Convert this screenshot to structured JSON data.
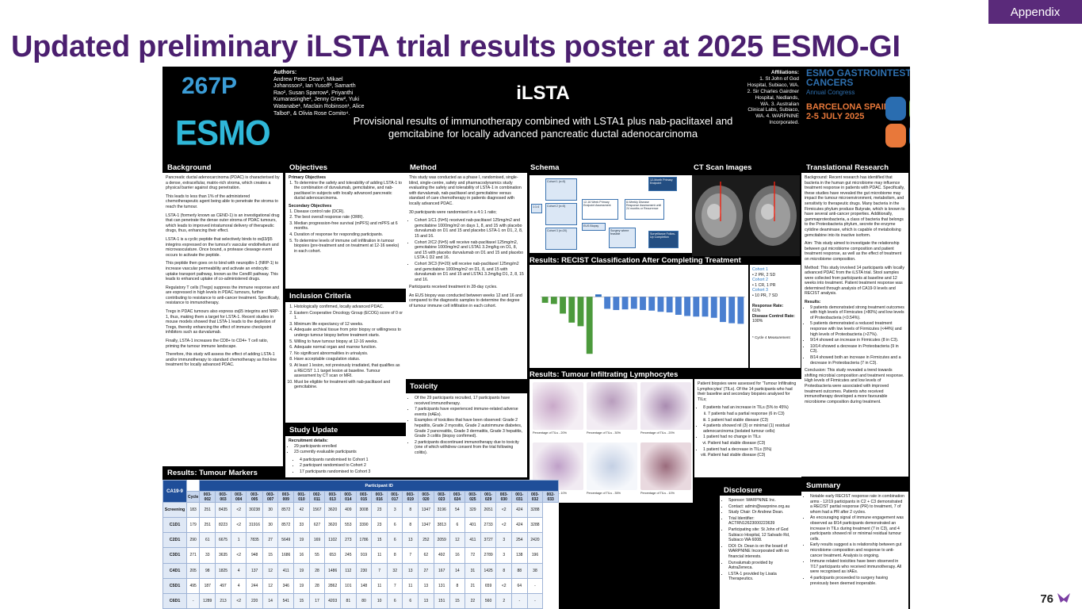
{
  "slide": {
    "tag": "Appendix",
    "title": "Updated preliminary iLSTA trial results poster at 2025 ESMO-GI",
    "page_number": "76",
    "logo_icon": "brand-arrow-icon"
  },
  "poster": {
    "code": "267P",
    "esmo_logo": "ESMO",
    "authors_heading": "Authors:",
    "authors": "Andrew Peter Dean¹, Mikael Johansson², Ian Yusoff³, Samarth Rao², Susan Sparrow², Priyanthi Kumarasinghe³, Jenny Grew², Yuki Watanabe¹, Maclain Robinson¹, Alice Talbot¹, & Olivia Rose Comito⁴.",
    "name": "iLSTA",
    "subtitle": "Provisional results of immunotherapy combined with LSTA1 plus nab-paclitaxel and gemcitabine for locally advanced pancreatic ductal adenocarcinoma",
    "affiliations_heading": "Affiliations:",
    "affiliations": "1. St John of God Hospital, Subiaco, WA. 2. Sir Charles Gairdner Hospital, Nedlands, WA. 3. Australian Clinical Labs, Subiaco, WA. 4. WARPNINE Incorporated.",
    "congress": {
      "line1": "ESMO GASTROINTESTINAL CANCERS",
      "line2": "Annual Congress",
      "line3": "BARCELONA SPAIN",
      "line4": "2-5 JULY 2025"
    },
    "sections": {
      "background": "Background",
      "objectives": "Objectives",
      "method": "Method",
      "schema": "Schema",
      "ct": "CT Scan Images",
      "translational": "Translational Research",
      "inclusion": "Inclusion Criteria",
      "recist": "Results: RECIST Classification After Completing Treatment",
      "til": "Results: Tumour Infiltrating Lymphocytes",
      "toxicity": "Toxicity",
      "study_update": "Study Update",
      "markers": "Results: Tumour Markers",
      "disclosure": "Disclosure",
      "summary": "Summary"
    },
    "background_text": [
      "Pancreatic ductal adenocarcinoma (PDAC) is characterised by a dense, extracellular, matrix-rich stroma, which creates a physical barrier against drug penetration.",
      "This leads to less than 1% of the administered chemotherapeutic agent being able to penetrate the stroma to reach the tumour.",
      "LSTA-1 (formerly known as CEND-1) is an investigational drug that can penetrate the dense outer stroma of PDAC tumours, which leads to improved intratumoral delivery of therapeutic drugs, thus, enhancing their effect.",
      "LSTA-1 is a cyclic peptide that selectively binds to αvβ3/β5 integrins expressed on the tumour's vascular endothelium and microvasculature. Once bound, a protease cleavage event occurs to activate the peptide.",
      "This peptide then goes on to bind with neuropilin-1 (NRP-1) to increase vascular permeability and activate an endocytic uptake transport pathway, known as the CendR pathway. This leads to enhanced uptake of co-administered drugs.",
      "Regulatory T cells (Tregs) suppress the immune response and are expressed in high levels in PDAC tumours, further contributing to resistance to anti-cancer treatment. Specifically, resistance to immunotherapy.",
      "Tregs in PDAC tumours also express αvβ5 integrins and NRP-1, thus, making them a target for LSTA-1. Recent studies in mouse models showed that LSTA-1 leads to the depletion of Tregs, thereby enhancing the effect of immune checkpoint inhibitors such as durvalumab.",
      "Finally, LSTA-1 increases the CD8+ to CD4+ T cell ratio, priming the tumour immune landscape.",
      "Therefore, this study will assess the effect of adding LSTA-1 and/or immunotherapy to standard chemotherapy as first-line treatment for locally advanced PDAC."
    ],
    "objectives": {
      "primary_heading": "Primary Objectives",
      "primary": [
        "To determine the safety and tolerability of adding LSTA-1 to the combination of durvalumab, gemcitabine, and nab-paclitaxel in subjects with locally advanced pancreatic ductal adenocarcinoma."
      ],
      "secondary_heading": "Secondary Objectives",
      "secondary": [
        "Disease control rate (DCR).",
        "The best overall response rate (ORR).",
        "Median progression-free survival (mPFS) and mPFS at 6 months.",
        "Duration of response for responding participants.",
        "To determine levels of immune cell infiltration in tumour biopsies (pre-treatment and on treatment at 12-16 weeks) in each cohort."
      ]
    },
    "inclusion": [
      "Histologically confirmed, locally advanced PDAC.",
      "Eastern Cooperative Oncology Group (ECOG) score of 0 or 1.",
      "Minimum life expectancy of 12 weeks.",
      "Adequate archival tissue from prior biopsy or willingness to undergo tumour biopsy before treatment starts.",
      "Willing to have tumour biopsy at 12-16 weeks.",
      "Adequate normal organ and marrow function.",
      "No significant abnormalities in urinalysis.",
      "Have acceptable coagulation status.",
      "At least 1 lesion, not previously irradiated, that qualifies as a RECIST 1.1 target lesion at baseline. Tumour assessment by CT scan or MRI.",
      "Must be eligible for treatment with nab-paclitaxel and gemcitabine."
    ],
    "study_update": {
      "heading": "Recruitment details:",
      "items": [
        "29 participants enrolled",
        "23 currently evaluable participants"
      ],
      "sub": [
        "4 participants randomised to Cohort 1",
        "2 participant randomised to Cohort 2",
        "17 participants randomised to Cohort 3"
      ]
    },
    "method": {
      "intro": "This study was conducted as a phase I, randomised, single-blind, single-centre, safety and pharmacodynamics study evaluating the safety and tolerability of LSTA-1 in combination with durvalumab, nab-paclitaxel and gemcitabine versus standard of care chemotherapy in patients diagnosed with locally advanced PDAC.",
      "rand": "30 participants were randomised in a 4:1:1 ratio;",
      "cohorts": [
        "Cohort 1/C1 (N=5) received nab-paclitaxel 125mg/m2 and gemcitabine 1000mg/m2 on days 1, 8, and 15 with placebo durvalumab on D1 and 15 and placebo LSTA-1 on D1, 2, 8, 15 and 16.",
        "Cohort 2/C2 (N=5) will receive nab-paclitaxel 125mg/m2, gemcitabine 1000mg/m2 and LSTA1 3.2mg/kg on D1, 8, and 15 with placebo durvalumab on D1 and 15 and placebo LSTA-1 D2 and 16.",
        "Cohort 3/C3 (N=20) will receive nab-paclitaxel 125mg/m2 and gemcitabine 1000mg/m2 on D1, 8, and 15 with durvalumab on D1 and 15 and LSTA1 3.2mg/kg D1, 2, 8, 15 and 16."
      ],
      "cycles": "Participants received treatment in 28-day cycles.",
      "eus": "An EUS biopsy was conducted between weeks 12 and 16 and compared to the diagnostic samples to determine the degree of tumour immune cell infiltration in each cohort."
    },
    "toxicity": [
      "Of the 29 participants recruited, 17 participants have received immunotherapy.",
      "7 participants have experienced immune-related adverse events (irAEs).",
      "Examples of toxicities that have been observed: Grade 2 hepatitis, Grade 2 myositis, Grade 2 autoimmune diabetes, Grade 2 pancreatitis, Grade 3 dermatitis, Grade 3 hepatitis, Grade 3 colitis (biopsy confirmed).",
      "2 participants discontinued immunotherapy due to toxicity (one of which withdrew consent from the trial following colitis)."
    ],
    "schema_text": {
      "c1": "Cohort 1 (n=5)",
      "c2": "Cohort 2 (n=5)",
      "c3": "Cohort 3 (n=20)",
      "r": "1:1:4",
      "a": "12-16 Week Primary Endpoint Assessment",
      "b": "EUS Biopsy",
      "c": "8-Weekly Disease Response Assessment until 24 months or Recurrence",
      "d": "12-Month Primary Endpoint",
      "e": "Surgery where feasible",
      "f": "Surveillance Follow-Up Completion"
    },
    "recist_side": {
      "c1": "Cohort 1",
      "c1v": "2 PR, 2 SD",
      "c2": "Cohort 2",
      "c2v": "1 CR, 1 PR",
      "c3": "Cohort 3",
      "c3v": "10 PR, 7 SD",
      "rr_label": "Response Rate:",
      "rr": "61%",
      "dcr_label": "Disease Control Rate:",
      "dcr": "100%",
      "note": "* Cycle 4 Measurement"
    },
    "til_text": {
      "intro": "Patient biopsies were assessed for 'Tumour Infiltrating Lymphocytes' (TILs). Of the 14 participants who had their baseline and secondary biopsies analysed for TILs;",
      "items": [
        "8 patients had an increase in TILs (5% to 45%)",
        "7 patients had a partial response (6 in C3)",
        "1 patient had stable disease (C3)",
        "4 patients showed nil (3) or minimal (1) residual adenocarcinoma (isolated tumour cells)",
        "1 patient had no change in TILs",
        "Patient had stable disease (C3)",
        "1 patient had a decrease in TILs (5%)",
        "Patient had stable disease (C3)"
      ],
      "caps": [
        "Percentage of TILs - 20%",
        "Percentage of TILs - 30%",
        "Percentage of TILs - 20%",
        "Percentage of TILs - 10%",
        "Percentage of TILs - 35%",
        "Percentage of TILs - 10%"
      ]
    },
    "translational": {
      "bg": "Background: Recent research has identified that bacteria in the human gut microbiome may influence treatment response in patients with PDAC. Specifically, these studies have revealed the gut microbiome may impact the tumour microenvironment, metabolism, and sensitivity to therapeutic drugs. Many bacteria in the Firmicutes phylum produce Butyrate, which is known to have several anti-cancer properties. Additionally, gammaproteobacteria, a class of bacteria that belongs to the Proteobacteria phylum, secrete the enzyme cytidine deaminase, which is capable of metabolising gemcitabine into its inactive isoform.",
      "aim": "Aim: This study aimed to investigate the relationship between gut microbiome composition and patient treatment response, as well as the effect of treatment on microbiome composition.",
      "method": "Method: This study involved 14 participants with locally advanced PDAC from the iLSTA trial. Stool samples were collected from participants at baseline and 12 weeks into treatment. Patient treatment response was determined through analysis of CA19-9 levels and RECIST analysis.",
      "results_heading": "Results:",
      "results": [
        "9 patients demonstrated strong treatment outcomes with high levels of Firmicutes (>80%) and low levels of Proteobacteria (<0.54%).",
        "5 patients demonstrated a reduced treatment response with low levels of Firmicutes (<44%) and high levels of Proteobacteria (>27%).",
        "9/14 showed an increase in Firmicutes (8 in C3).",
        "10/14 showed a decrease in Proteobacteria (9 in C3).",
        "8/14 showed both an increase in Firmicutes and a decrease in Proteobacteria (7 in C3)."
      ],
      "conclusion": "Conclusion: This study revealed a trend towards shifting microbial composition and treatment response. High levels of Firmicutes and low levels of Proteobacteria were associated with improved treatment outcomes. Patients who received immunotherapy developed a more favourable microbiome composition during treatment."
    },
    "disclosure": [
      "Sponsor: WARPNINE Inc.",
      "Contact: admin@warpnine.org.au",
      "Study Chair: Dr Andrew Dean.",
      "Trial Identifier: ACTRN12623000223639",
      "Participating site: St John of God Subiaco Hospital, 12 Salvado Rd, Subiaco WA 6008.",
      "DOI: Dr. Dean is on the board of WARPNINE Incorporated with no financial interests.",
      "Durvalumab provided by AstraZeneca.",
      "LSTA-1 provided by Lisata Therapeutics."
    ],
    "summary": [
      "Notable early RECIST response rate in combination arms - 12/19 participants in C2 + C3 demonstrated a RECIST partial response (PR) to treatment, 7 of whom had a PR after 2 cycles.",
      "An encouraging signal of immune engagement was observed as 8/14 participants demonstrated an increase in TILs during treatment (7 in C3), and 4 participants showed nil or minimal residual tumour cells.",
      "Early results suggest a is relationship between gut microbiome composition and response to anti-cancer treatment. Analysis is ongoing.",
      "Immune related toxicities have been observed in 7/17 participants who received immunotherapy. All were recognised as irAEs.",
      "4 participants proceeded to surgery having previously been deemed inoperable."
    ]
  },
  "markers_table": {
    "group": "CA19-9",
    "header": "Participant ID",
    "cycle_label": "Cycle",
    "ids": [
      "003-002",
      "003-003",
      "003-004",
      "003-005",
      "003-007",
      "003-009",
      "001-010",
      "002-011",
      "003-013",
      "003-014",
      "003-015",
      "003-016",
      "001-017",
      "003-019",
      "003-020",
      "003-023",
      "003-024",
      "003-025",
      "001-029",
      "003-030",
      "001-031",
      "003-032",
      "002-033"
    ],
    "rows": [
      {
        "label": "Screening",
        "values": [
          "183",
          "251",
          "8435",
          "<2",
          "30238",
          "30",
          "8572",
          "42",
          "1567",
          "3620",
          "409",
          "3008",
          "23",
          "3",
          "8",
          "1347",
          "3196",
          "54",
          "329",
          "2651",
          "<2",
          "424",
          "3288"
        ]
      },
      {
        "label": "C1D1",
        "values": [
          "179",
          "251",
          "8223",
          "<2",
          "31916",
          "30",
          "8572",
          "33",
          "627",
          "3620",
          "553",
          "3390",
          "23",
          "6",
          "8",
          "1347",
          "3813",
          "6",
          "401",
          "2733",
          "<2",
          "424",
          "3288"
        ]
      },
      {
        "label": "C2D1",
        "values": [
          "290",
          "61",
          "6675",
          "1",
          "7835",
          "27",
          "5649",
          "19",
          "169",
          "1102",
          "273",
          "1786",
          "15",
          "6",
          "13",
          "252",
          "2059",
          "12",
          "411",
          "3727",
          "3",
          "254",
          "2420"
        ]
      },
      {
        "label": "C3D1",
        "values": [
          "271",
          "33",
          "3635",
          "<2",
          "948",
          "15",
          "1686",
          "16",
          "55",
          "653",
          "245",
          "919",
          "11",
          "8",
          "7",
          "62",
          "492",
          "16",
          "72",
          "2789",
          "3",
          "138",
          "196"
        ]
      },
      {
        "label": "C4D1",
        "values": [
          "205",
          "98",
          "1825",
          "4",
          "137",
          "12",
          "411",
          "19",
          "28",
          "1486",
          "112",
          "230",
          "7",
          "32",
          "13",
          "27",
          "167",
          "14",
          "31",
          "1425",
          "8",
          "88",
          "38"
        ]
      },
      {
        "label": "C5D1",
        "values": [
          "495",
          "187",
          "497",
          "4",
          "244",
          "12",
          "346",
          "19",
          "28",
          "2862",
          "101",
          "148",
          "11",
          "7",
          "11",
          "13",
          "131",
          "8",
          "21",
          "659",
          "<2",
          "64",
          "-"
        ]
      },
      {
        "label": "C6D1",
        "values": [
          "-",
          "1289",
          "213",
          "<2",
          "220",
          "14",
          "541",
          "15",
          "17",
          "4203",
          "81",
          "80",
          "10",
          "6",
          "6",
          "13",
          "151",
          "15",
          "22",
          "560",
          "2",
          "-",
          "-"
        ]
      }
    ]
  },
  "chart_data": {
    "type": "bar",
    "title": "",
    "ylabel": "",
    "ylim": [
      -100,
      40
    ],
    "values": [
      -10,
      -12,
      -28,
      -43,
      -49,
      -95,
      4,
      -20,
      -22,
      -21,
      -20,
      -22,
      -23,
      -25,
      -26,
      -30,
      -32,
      -33,
      -33,
      -35,
      -42,
      -44,
      -45
    ],
    "colors": [
      "#4c9a3c",
      "#4c9a3c",
      "#4c9a3c",
      "#4c9a3c",
      "#4c9a3c",
      "#4c9a3c",
      "#2f6fc0",
      "#4a7fd0",
      "#4a7fd0",
      "#4a7fd0",
      "#4a7fd0",
      "#4a7fd0",
      "#4a7fd0",
      "#4a7fd0",
      "#4a7fd0",
      "#4a7fd0",
      "#4a7fd0",
      "#4a7fd0",
      "#4a7fd0",
      "#4a7fd0",
      "#4a7fd0",
      "#4a7fd0",
      "#4a7fd0"
    ]
  }
}
